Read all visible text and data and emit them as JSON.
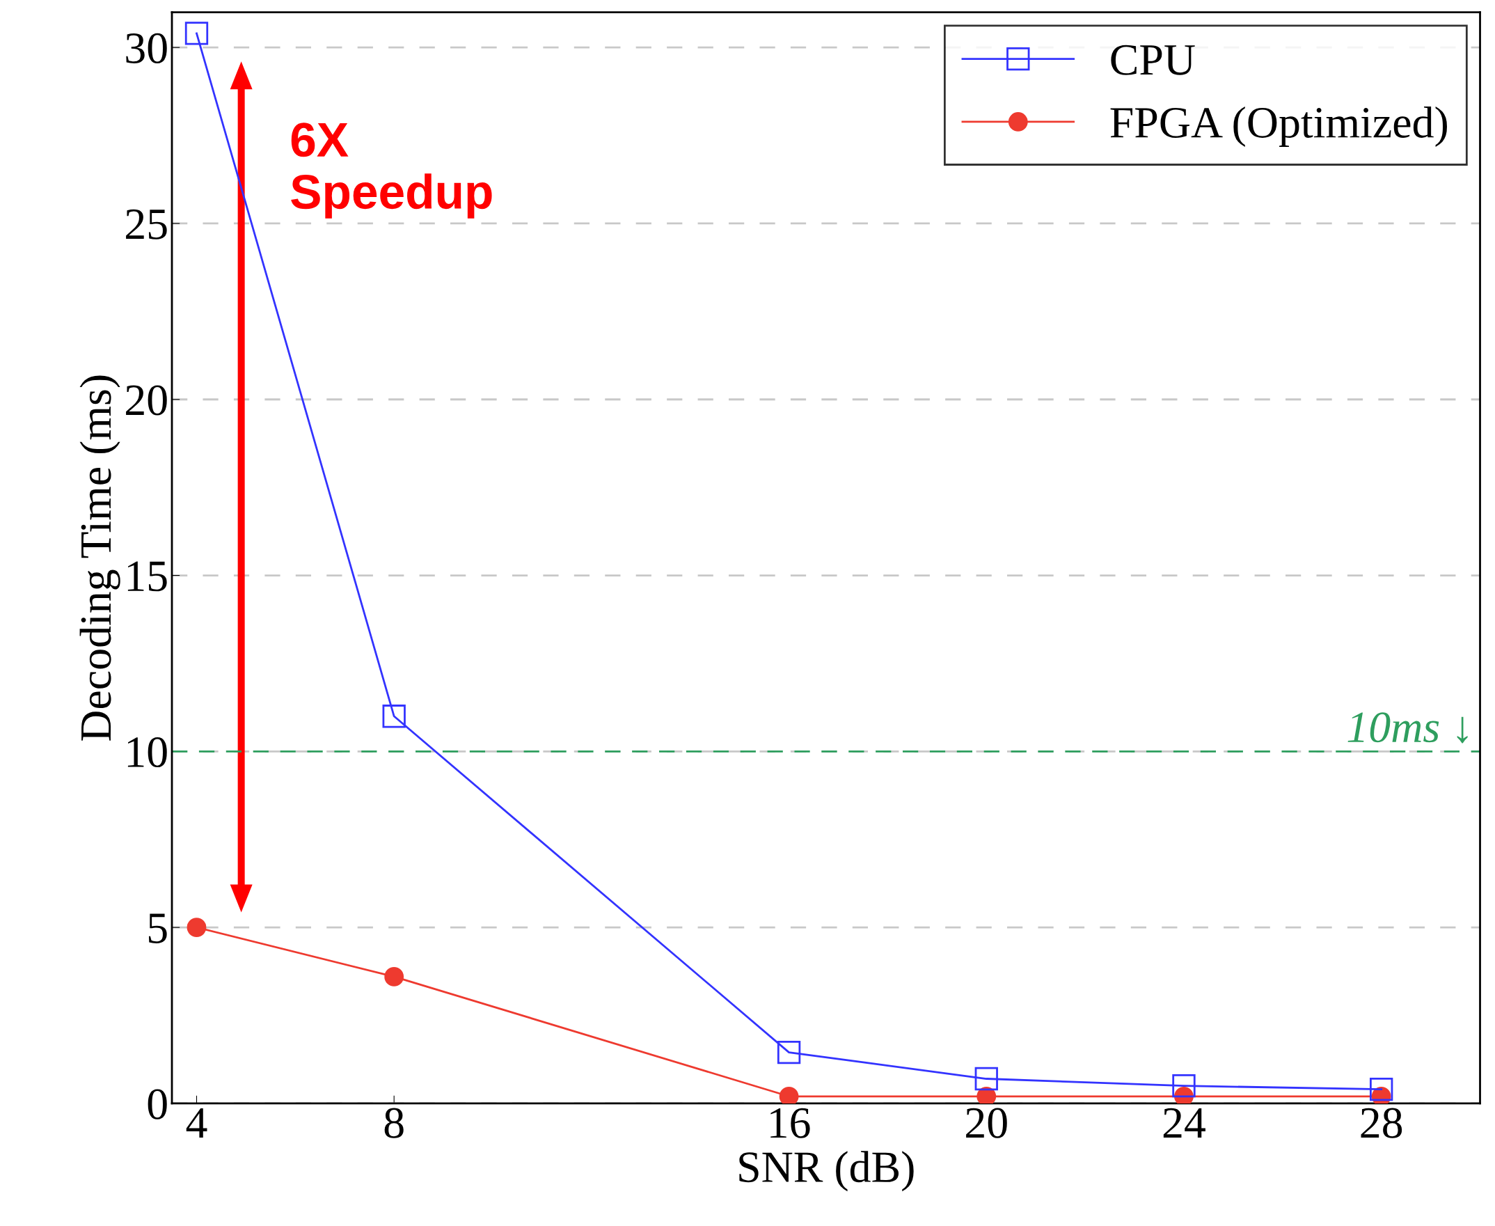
{
  "chart_data": {
    "type": "line",
    "xlabel": "SNR (dB)",
    "ylabel": "Decoding Time (ms)",
    "x": [
      4,
      8,
      16,
      20,
      24,
      28
    ],
    "series": [
      {
        "name": "CPU",
        "color": "#3333ff",
        "marker": "square",
        "values": [
          30.4,
          11.0,
          1.45,
          0.7,
          0.5,
          0.4
        ]
      },
      {
        "name": "FPGA (Optimized)",
        "color": "#ee3a2f",
        "marker": "circle",
        "values": [
          5.0,
          3.6,
          0.2,
          0.2,
          0.2,
          0.2
        ]
      }
    ],
    "xlim": [
      3.5,
      30
    ],
    "xticks": [
      4,
      8,
      16,
      20,
      24,
      28
    ],
    "ylim": [
      0,
      31
    ],
    "yticks": [
      0,
      5,
      10,
      15,
      20,
      25,
      30
    ],
    "grid": "y",
    "legend": "top right",
    "line_style": "solid",
    "ref_lines": [
      {
        "axis": "y",
        "value": 10,
        "label": "10ms ↓",
        "color": "#2e9e5e",
        "line_style": "dashed"
      }
    ],
    "annotations": [
      "6X\nSpeedup"
    ]
  }
}
